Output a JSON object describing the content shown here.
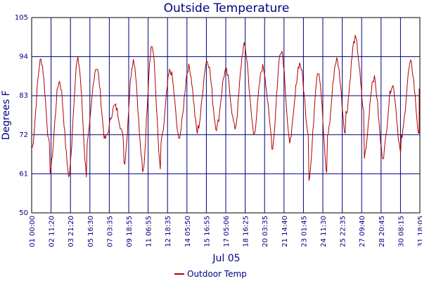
{
  "chart_data": {
    "type": "line",
    "title": "Outside Temperature",
    "ylabel": "Degrees F",
    "xlabel": "Jul 05",
    "ylim": [
      50,
      105
    ],
    "yticks": [
      50,
      61,
      72,
      83,
      94,
      105
    ],
    "x_tick_labels": [
      "01 00:00",
      "02 11:20",
      "03 21:20",
      "05 16:30",
      "07 03:35",
      "09 18:55",
      "11 06:55",
      "12 18:35",
      "14 05:50",
      "15 16:55",
      "17 05:06",
      "18 16:25",
      "20 03:35",
      "21 14:40",
      "23 01:45",
      "24 11:30",
      "25 22:35",
      "27 09:40",
      "28 20:45",
      "30 08:15",
      "31 18:05"
    ],
    "grid": true,
    "legend_position": "bottom-center",
    "series": [
      {
        "name": "Outdoor Temp",
        "color": "#b00000",
        "daily_lows": [
          68,
          62,
          60,
          70,
          71,
          64,
          61,
          70,
          72,
          74,
          74,
          74,
          72,
          68,
          72,
          60,
          72,
          78,
          66,
          66,
          71
        ],
        "daily_highs": [
          93,
          87,
          93,
          91,
          80,
          93,
          97,
          90,
          91,
          93,
          90,
          97,
          91,
          96,
          92,
          90,
          93,
          99,
          88,
          86,
          92
        ]
      }
    ]
  }
}
